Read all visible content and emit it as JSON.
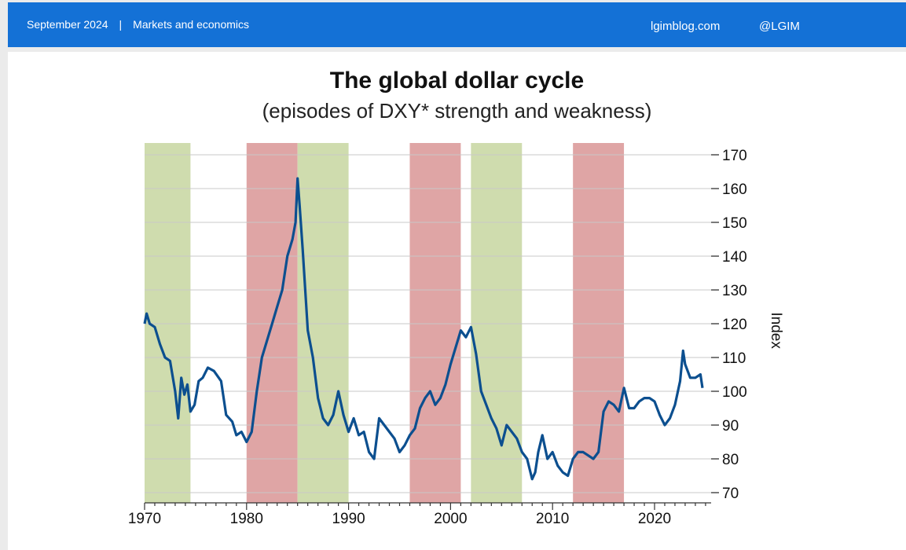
{
  "header": {
    "date": "September 2024",
    "separator": "|",
    "section": "Markets and economics",
    "site": "lgimblog.com",
    "handle": "@LGIM"
  },
  "colors": {
    "header_bg": "#1471d6",
    "line": "#0c4f8f",
    "strength_band": "#dfa5a5",
    "weakness_band": "#cfdcae"
  },
  "chart_data": {
    "type": "line",
    "title": "The global dollar cycle",
    "subtitle": "(episodes of DXY* strength and weakness)",
    "ylabel": "Index",
    "xlim": [
      1970,
      2025.8
    ],
    "ylim": [
      70,
      173
    ],
    "x_ticks": [
      1970,
      1980,
      1990,
      2000,
      2010,
      2020
    ],
    "y_ticks": [
      70,
      80,
      90,
      100,
      110,
      120,
      130,
      140,
      150,
      160,
      170
    ],
    "bands": [
      {
        "start": 1970,
        "end": 1974.5,
        "color": "#cfdcae"
      },
      {
        "start": 1980,
        "end": 1985,
        "color": "#dfa5a5"
      },
      {
        "start": 1985,
        "end": 1990,
        "color": "#cfdcae"
      },
      {
        "start": 1996,
        "end": 2001,
        "color": "#dfa5a5"
      },
      {
        "start": 2002,
        "end": 2007,
        "color": "#cfdcae"
      },
      {
        "start": 2012,
        "end": 2017,
        "color": "#dfa5a5"
      }
    ],
    "series": [
      {
        "x": [
          1970,
          1970.2,
          1970.5,
          1971,
          1971.5,
          1972,
          1972.5,
          1973,
          1973.3,
          1973.6,
          1973.9,
          1974.2,
          1974.5,
          1974.9,
          1975.3,
          1975.7,
          1976.2,
          1976.8,
          1977.5,
          1978,
          1978.6,
          1979,
          1979.5,
          1980,
          1980.5,
          1981,
          1981.5,
          1982,
          1982.5,
          1983,
          1983.5,
          1984,
          1984.5,
          1984.8,
          1985,
          1985.2,
          1985.5,
          1986,
          1986.5,
          1987,
          1987.5,
          1988,
          1988.5,
          1989,
          1989.5,
          1990,
          1990.5,
          1991,
          1991.5,
          1992,
          1992.5,
          1993,
          1993.5,
          1994,
          1994.5,
          1995,
          1995.5,
          1996,
          1996.5,
          1997,
          1997.5,
          1998,
          1998.5,
          1999,
          1999.5,
          2000,
          2000.5,
          2001,
          2001.5,
          2002,
          2002.5,
          2003,
          2003.5,
          2004,
          2004.5,
          2005,
          2005.5,
          2006,
          2006.5,
          2007,
          2007.5,
          2008,
          2008.3,
          2008.6,
          2009,
          2009.5,
          2010,
          2010.5,
          2011,
          2011.5,
          2012,
          2012.5,
          2013,
          2013.5,
          2014,
          2014.5,
          2015,
          2015.5,
          2016,
          2016.5,
          2017,
          2017.5,
          2018,
          2018.5,
          2019,
          2019.5,
          2020,
          2020.5,
          2021,
          2021.5,
          2022,
          2022.5,
          2022.8,
          2023,
          2023.5,
          2024,
          2024.5,
          2024.7
        ],
        "values": [
          120,
          123,
          120,
          119,
          114,
          110,
          109,
          100,
          92,
          104,
          99,
          102,
          94,
          96,
          103,
          104,
          107,
          106,
          103,
          93,
          91,
          87,
          88,
          85,
          88,
          100,
          110,
          115,
          120,
          125,
          130,
          140,
          145,
          150,
          163,
          155,
          142,
          118,
          110,
          98,
          92,
          90,
          93,
          100,
          93,
          88,
          92,
          87,
          88,
          82,
          80,
          92,
          90,
          88,
          86,
          82,
          84,
          87,
          89,
          95,
          98,
          100,
          96,
          98,
          102,
          108,
          113,
          118,
          116,
          119,
          111,
          100,
          96,
          92,
          89,
          84,
          90,
          88,
          86,
          82,
          80,
          74,
          76,
          82,
          87,
          80,
          82,
          78,
          76,
          75,
          80,
          82,
          82,
          81,
          80,
          82,
          94,
          97,
          96,
          94,
          101,
          95,
          95,
          97,
          98,
          98,
          97,
          93,
          90,
          92,
          96,
          103,
          112,
          108,
          104,
          104,
          105,
          101
        ]
      }
    ]
  }
}
